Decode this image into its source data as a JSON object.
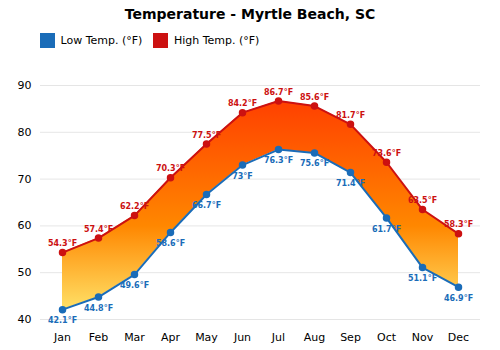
{
  "chart_data": {
    "type": "line",
    "title": "Temperature - Myrtle Beach, SC",
    "categories": [
      "Jan",
      "Feb",
      "Mar",
      "Apr",
      "May",
      "Jun",
      "Jul",
      "Aug",
      "Sep",
      "Oct",
      "Nov",
      "Dec"
    ],
    "series": [
      {
        "name": "Low Temp. (°F)",
        "color": "#1a6cb8",
        "values": [
          42.1,
          44.8,
          49.6,
          58.6,
          66.7,
          73.0,
          76.3,
          75.6,
          71.4,
          61.7,
          51.1,
          46.9
        ],
        "value_labels": [
          "42.1°F",
          "44.8°F",
          "49.6°F",
          "58.6°F",
          "66.7°F",
          "73°F",
          "76.3°F",
          "75.6°F",
          "71.4°F",
          "61.7°F",
          "51.1°F",
          "46.9°F"
        ]
      },
      {
        "name": "High Temp. (°F)",
        "color": "#cc1111",
        "values": [
          54.3,
          57.4,
          62.2,
          70.3,
          77.5,
          84.2,
          86.7,
          85.6,
          81.7,
          73.6,
          63.5,
          58.3
        ],
        "value_labels": [
          "54.3°F",
          "57.4°F",
          "62.2°F",
          "70.3°F",
          "77.5°F",
          "84.2°F",
          "86.7°F",
          "85.6°F",
          "81.7°F",
          "73.6°F",
          "63.5°F",
          "58.3°F"
        ]
      }
    ],
    "ylim": [
      40,
      90
    ],
    "yticks": [
      40,
      50,
      60,
      70,
      80,
      90
    ],
    "grid": true,
    "legend": "upper left",
    "data_labels": true,
    "marker": "circle"
  }
}
